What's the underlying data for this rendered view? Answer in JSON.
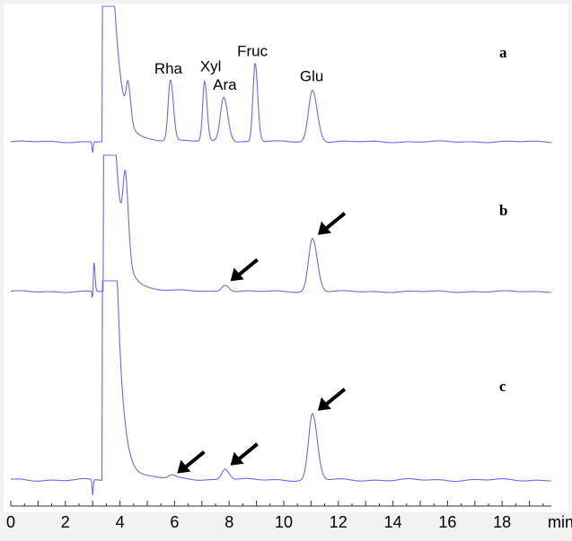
{
  "chart_data": {
    "type": "line",
    "title": "",
    "xlabel": "min",
    "ylabel": "",
    "xlim": [
      0,
      20
    ],
    "x_ticks": [
      "0",
      "2",
      "4",
      "6",
      "8",
      "10",
      "12",
      "14",
      "16",
      "18"
    ],
    "grid": false,
    "trace_color": "#6b6bf0",
    "series": [
      {
        "name": "a",
        "solvent_front": {
          "start": 3.4,
          "end": 3.8,
          "tail": 0.28,
          "dip": 3.0
        },
        "peaks": [
          {
            "label": "",
            "t": 4.3,
            "height": 0.26,
            "width": 0.1
          },
          {
            "label": "Rha",
            "t": 5.85,
            "height": 0.45,
            "width": 0.12
          },
          {
            "label": "Xyl",
            "t": 7.1,
            "height": 0.44,
            "width": 0.1
          },
          {
            "label": "Ara",
            "t": 7.8,
            "height": 0.33,
            "width": 0.17
          },
          {
            "label": "Fruc",
            "t": 8.95,
            "height": 0.58,
            "width": 0.11
          },
          {
            "label": "Glu",
            "t": 11.05,
            "height": 0.38,
            "width": 0.2
          }
        ],
        "arrows": []
      },
      {
        "name": "b",
        "solvent_front": {
          "start": 3.45,
          "end": 3.85,
          "tail": 0.3,
          "dip": 3.0
        },
        "peaks": [
          {
            "label": "",
            "t": 3.05,
            "height": 0.22,
            "width": 0.04
          },
          {
            "label": "",
            "t": 4.2,
            "height": 0.55,
            "width": 0.12
          },
          {
            "label": "",
            "t": 7.85,
            "height": 0.05,
            "width": 0.17
          },
          {
            "label": "",
            "t": 11.05,
            "height": 0.39,
            "width": 0.2
          }
        ],
        "arrows": [
          7.85,
          11.05
        ]
      },
      {
        "name": "c",
        "solvent_front": {
          "start": 3.4,
          "end": 3.9,
          "tail": 0.22,
          "dip": 3.0
        },
        "peaks": [
          {
            "label": "",
            "t": 5.9,
            "height": 0.015,
            "width": 0.15
          },
          {
            "label": "",
            "t": 7.85,
            "height": 0.055,
            "width": 0.17
          },
          {
            "label": "",
            "t": 11.05,
            "height": 0.33,
            "width": 0.2
          }
        ],
        "arrows": [
          5.9,
          7.85,
          11.05
        ]
      }
    ]
  }
}
